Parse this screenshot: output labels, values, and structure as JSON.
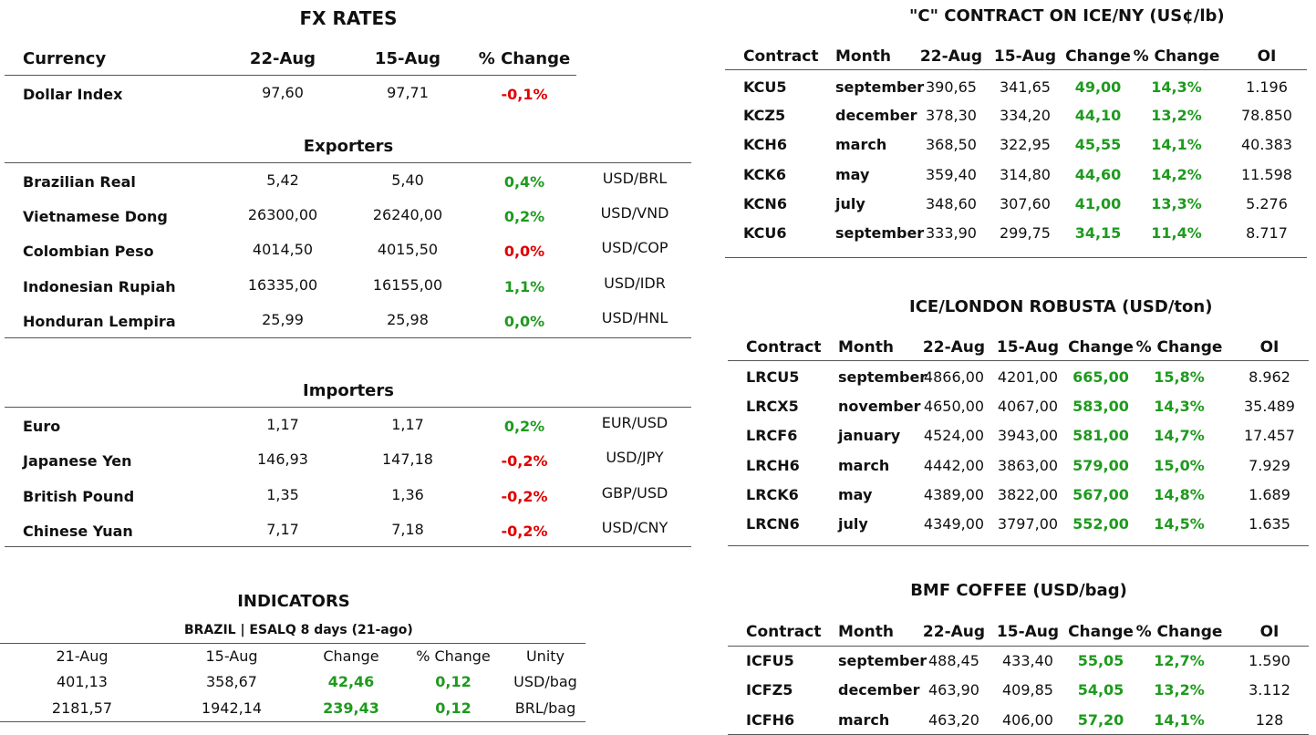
{
  "fx_rates": {
    "title": "FX RATES",
    "header": [
      "Currency",
      "22-Aug",
      "15-Aug",
      "% Change"
    ],
    "rows": [
      [
        "Dollar Index",
        "97,60",
        "97,71",
        "-0,1%"
      ]
    ],
    "change_colors": [
      "#e00000"
    ]
  },
  "exporters": {
    "title": "Exporters",
    "rows": [
      [
        "Brazilian Real",
        "5,42",
        "5,40",
        "0,4%",
        "USD/BRL"
      ],
      [
        "Vietnamese Dong",
        "26300,00",
        "26240,00",
        "0,2%",
        "USD/VND"
      ],
      [
        "Colombian Peso",
        "4014,50",
        "4015,50",
        "0,0%",
        "USD/COP"
      ],
      [
        "Indonesian Rupiah",
        "16335,00",
        "16155,00",
        "1,1%",
        "USD/IDR"
      ],
      [
        "Honduran Lempira",
        "25,99",
        "25,98",
        "0,0%",
        "USD/HNL"
      ]
    ],
    "change_colors": [
      "#1e9a1e",
      "#1e9a1e",
      "#e00000",
      "#1e9a1e",
      "#1e9a1e"
    ]
  },
  "importers": {
    "title": "Importers",
    "rows": [
      [
        "Euro",
        "1,17",
        "1,17",
        "0,2%",
        "EUR/USD"
      ],
      [
        "Japanese Yen",
        "146,93",
        "147,18",
        "-0,2%",
        "USD/JPY"
      ],
      [
        "British Pound",
        "1,35",
        "1,36",
        "-0,2%",
        "GBP/USD"
      ],
      [
        "Chinese Yuan",
        "7,17",
        "7,18",
        "-0,2%",
        "USD/CNY"
      ]
    ],
    "change_colors": [
      "#1e9a1e",
      "#e00000",
      "#e00000",
      "#e00000"
    ]
  },
  "indicators": {
    "title": "INDICATORS",
    "subtitle": "BRAZIL | ESALQ 8 days (21-ago)",
    "header": [
      "21-Aug",
      "15-Aug",
      "Change",
      "% Change",
      "Unity"
    ],
    "rows": [
      [
        "401,13",
        "358,67",
        "42,46",
        "0,12",
        "USD/bag"
      ],
      [
        "2181,57",
        "1942,14",
        "239,43",
        "0,12",
        "BRL/bag"
      ]
    ],
    "change_color": "#1e9a1e"
  },
  "ice_ny": {
    "title": "\"C\" CONTRACT ON ICE/NY (US¢/lb)",
    "header": [
      "Contract",
      "Month",
      "22-Aug",
      "15-Aug",
      "Change",
      "% Change",
      "OI"
    ],
    "rows": [
      [
        "KCU5",
        "september",
        "390,65",
        "341,65",
        "49,00",
        "14,3%",
        "1.196"
      ],
      [
        "KCZ5",
        "december",
        "378,30",
        "334,20",
        "44,10",
        "13,2%",
        "78.850"
      ],
      [
        "KCH6",
        "march",
        "368,50",
        "322,95",
        "45,55",
        "14,1%",
        "40.383"
      ],
      [
        "KCK6",
        "may",
        "359,40",
        "314,80",
        "44,60",
        "14,2%",
        "11.598"
      ],
      [
        "KCN6",
        "july",
        "348,60",
        "307,60",
        "41,00",
        "13,3%",
        "5.276"
      ],
      [
        "KCU6",
        "september",
        "333,90",
        "299,75",
        "34,15",
        "11,4%",
        "8.717"
      ]
    ],
    "change_color": "#1e9a1e"
  },
  "ice_london": {
    "title": "ICE/LONDON ROBUSTA (USD/ton)",
    "header": [
      "Contract",
      "Month",
      "22-Aug",
      "15-Aug",
      "Change",
      "% Change",
      "OI"
    ],
    "rows": [
      [
        "LRCU5",
        "september",
        "4866,00",
        "4201,00",
        "665,00",
        "15,8%",
        "8.962"
      ],
      [
        "LRCX5",
        "november",
        "4650,00",
        "4067,00",
        "583,00",
        "14,3%",
        "35.489"
      ],
      [
        "LRCF6",
        "january",
        "4524,00",
        "3943,00",
        "581,00",
        "14,7%",
        "17.457"
      ],
      [
        "LRCH6",
        "march",
        "4442,00",
        "3863,00",
        "579,00",
        "15,0%",
        "7.929"
      ],
      [
        "LRCK6",
        "may",
        "4389,00",
        "3822,00",
        "567,00",
        "14,8%",
        "1.689"
      ],
      [
        "LRCN6",
        "july",
        "4349,00",
        "3797,00",
        "552,00",
        "14,5%",
        "1.635"
      ]
    ],
    "change_color": "#1e9a1e"
  },
  "bmf": {
    "title": "BMF COFFEE (USD/bag)",
    "header": [
      "Contract",
      "Month",
      "22-Aug",
      "15-Aug",
      "Change",
      "% Change",
      "OI"
    ],
    "rows": [
      [
        "ICFU5",
        "september",
        "488,45",
        "433,40",
        "55,05",
        "12,7%",
        "1.590"
      ],
      [
        "ICFZ5",
        "december",
        "463,90",
        "409,85",
        "54,05",
        "13,2%",
        "3.112"
      ],
      [
        "ICFH6",
        "march",
        "463,20",
        "406,00",
        "57,20",
        "14,1%",
        "128"
      ]
    ],
    "change_color": "#1e9a1e"
  }
}
